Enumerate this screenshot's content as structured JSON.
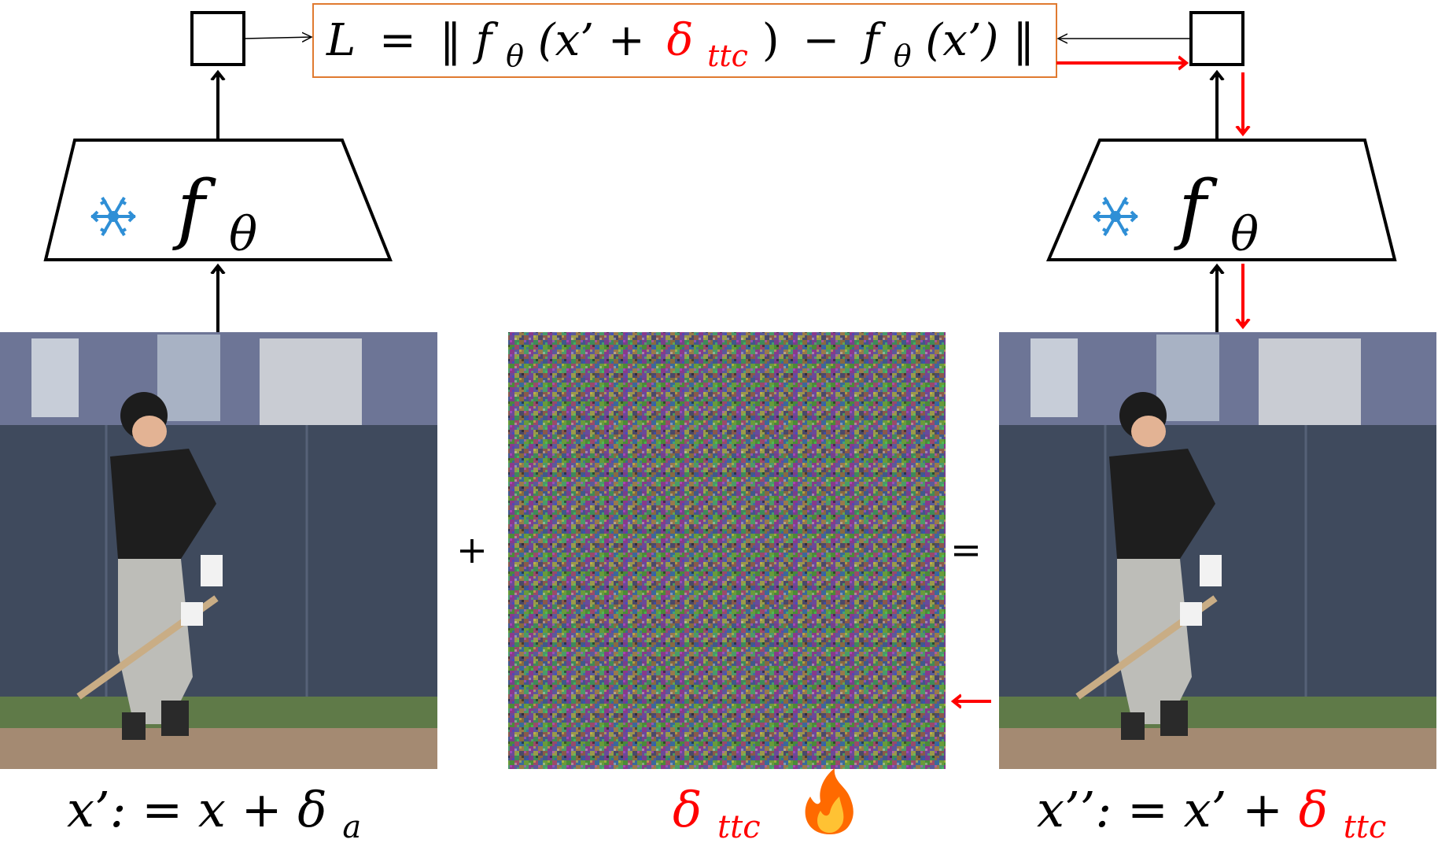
{
  "loss": {
    "L": "L",
    "eq": "=",
    "norm_open": "‖",
    "f1": "f",
    "theta1": "θ",
    "arg1_open": "(x’ +",
    "delta": "δ",
    "ttc": "ttc",
    "arg1_close": ")",
    "minus": "−",
    "f2": "f",
    "theta2": "θ",
    "arg2": "(x’)",
    "norm_close": "‖"
  },
  "encoder_left": {
    "f": "f",
    "sub": "θ",
    "state_icon": "snowflake-icon"
  },
  "encoder_right": {
    "f": "f",
    "sub": "θ",
    "state_icon": "snowflake-icon"
  },
  "plus_sign": "+",
  "equals_sign": "=",
  "caption_left": {
    "lhs": "x’: = x + ",
    "delta": "δ",
    "sub": "a"
  },
  "caption_middle": {
    "delta": "δ",
    "sub": "ttc",
    "state_icon": "fire-icon"
  },
  "caption_right": {
    "lhs": "x’’: = x’ + ",
    "delta": "δ",
    "sub": "ttc"
  },
  "colors": {
    "gradient_arrow": "#ff0000",
    "snowflake": "#2f8fd6",
    "loss_border": "#e07a30",
    "fire": "#ff6a00"
  }
}
